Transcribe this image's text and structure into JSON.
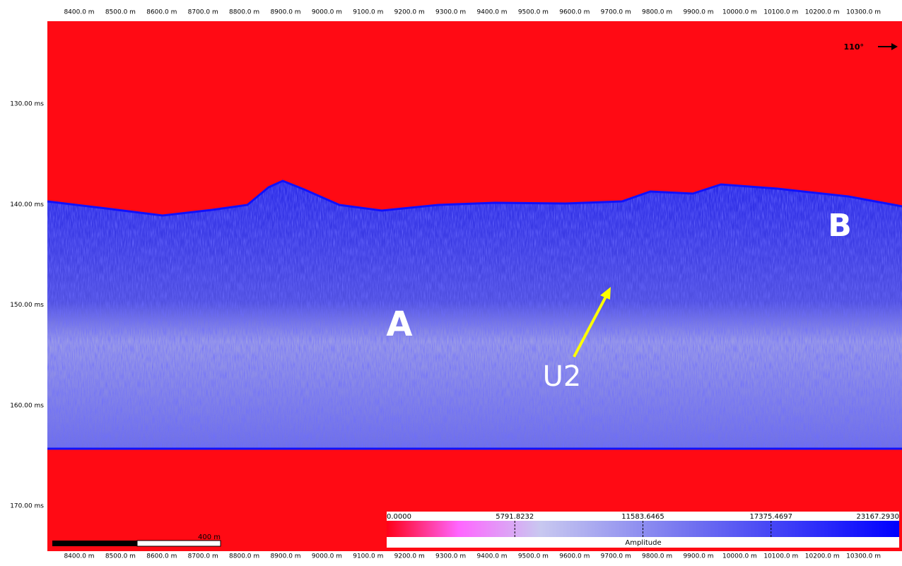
{
  "top_axis": {
    "labels": [
      "8400.0 m",
      "8500.0 m",
      "8600.0 m",
      "8700.0 m",
      "8800.0 m",
      "8900.0 m",
      "9000.0 m",
      "9100.0 m",
      "9200.0 m",
      "9300.0 m",
      "9400.0 m",
      "9500.0 m",
      "9600.0 m",
      "9700.0 m",
      "9800.0 m",
      "9900.0 m",
      "10000.0 m",
      "10100.0 m",
      "10200.0 m",
      "10300.0 m"
    ]
  },
  "bottom_axis": {
    "labels": [
      "8400.0 m",
      "8500.0 m",
      "8600.0 m",
      "8700.0 m",
      "8800.0 m",
      "8900.0 m",
      "9000.0 m",
      "9100.0 m",
      "9200.0 m",
      "9300.0 m",
      "9400.0 m",
      "9500.0 m",
      "9600.0 m",
      "9700.0 m",
      "9800.0 m",
      "9900.0 m",
      "10000.0 m",
      "10100.0 m",
      "10200.0 m",
      "10300.0 m"
    ]
  },
  "left_axis": {
    "labels": [
      "130.00 ms",
      "140.00 ms",
      "150.00 ms",
      "160.00 ms",
      "170.00 ms"
    ]
  },
  "direction": "110°",
  "annotations": [
    "A",
    "B",
    "U2"
  ],
  "scale_bar": "400 m",
  "colorbar": {
    "labels": [
      "0.0000",
      "5791.8232",
      "11583.6465",
      "17375.4697",
      "23167.2930"
    ],
    "title": "Amplitude"
  }
}
